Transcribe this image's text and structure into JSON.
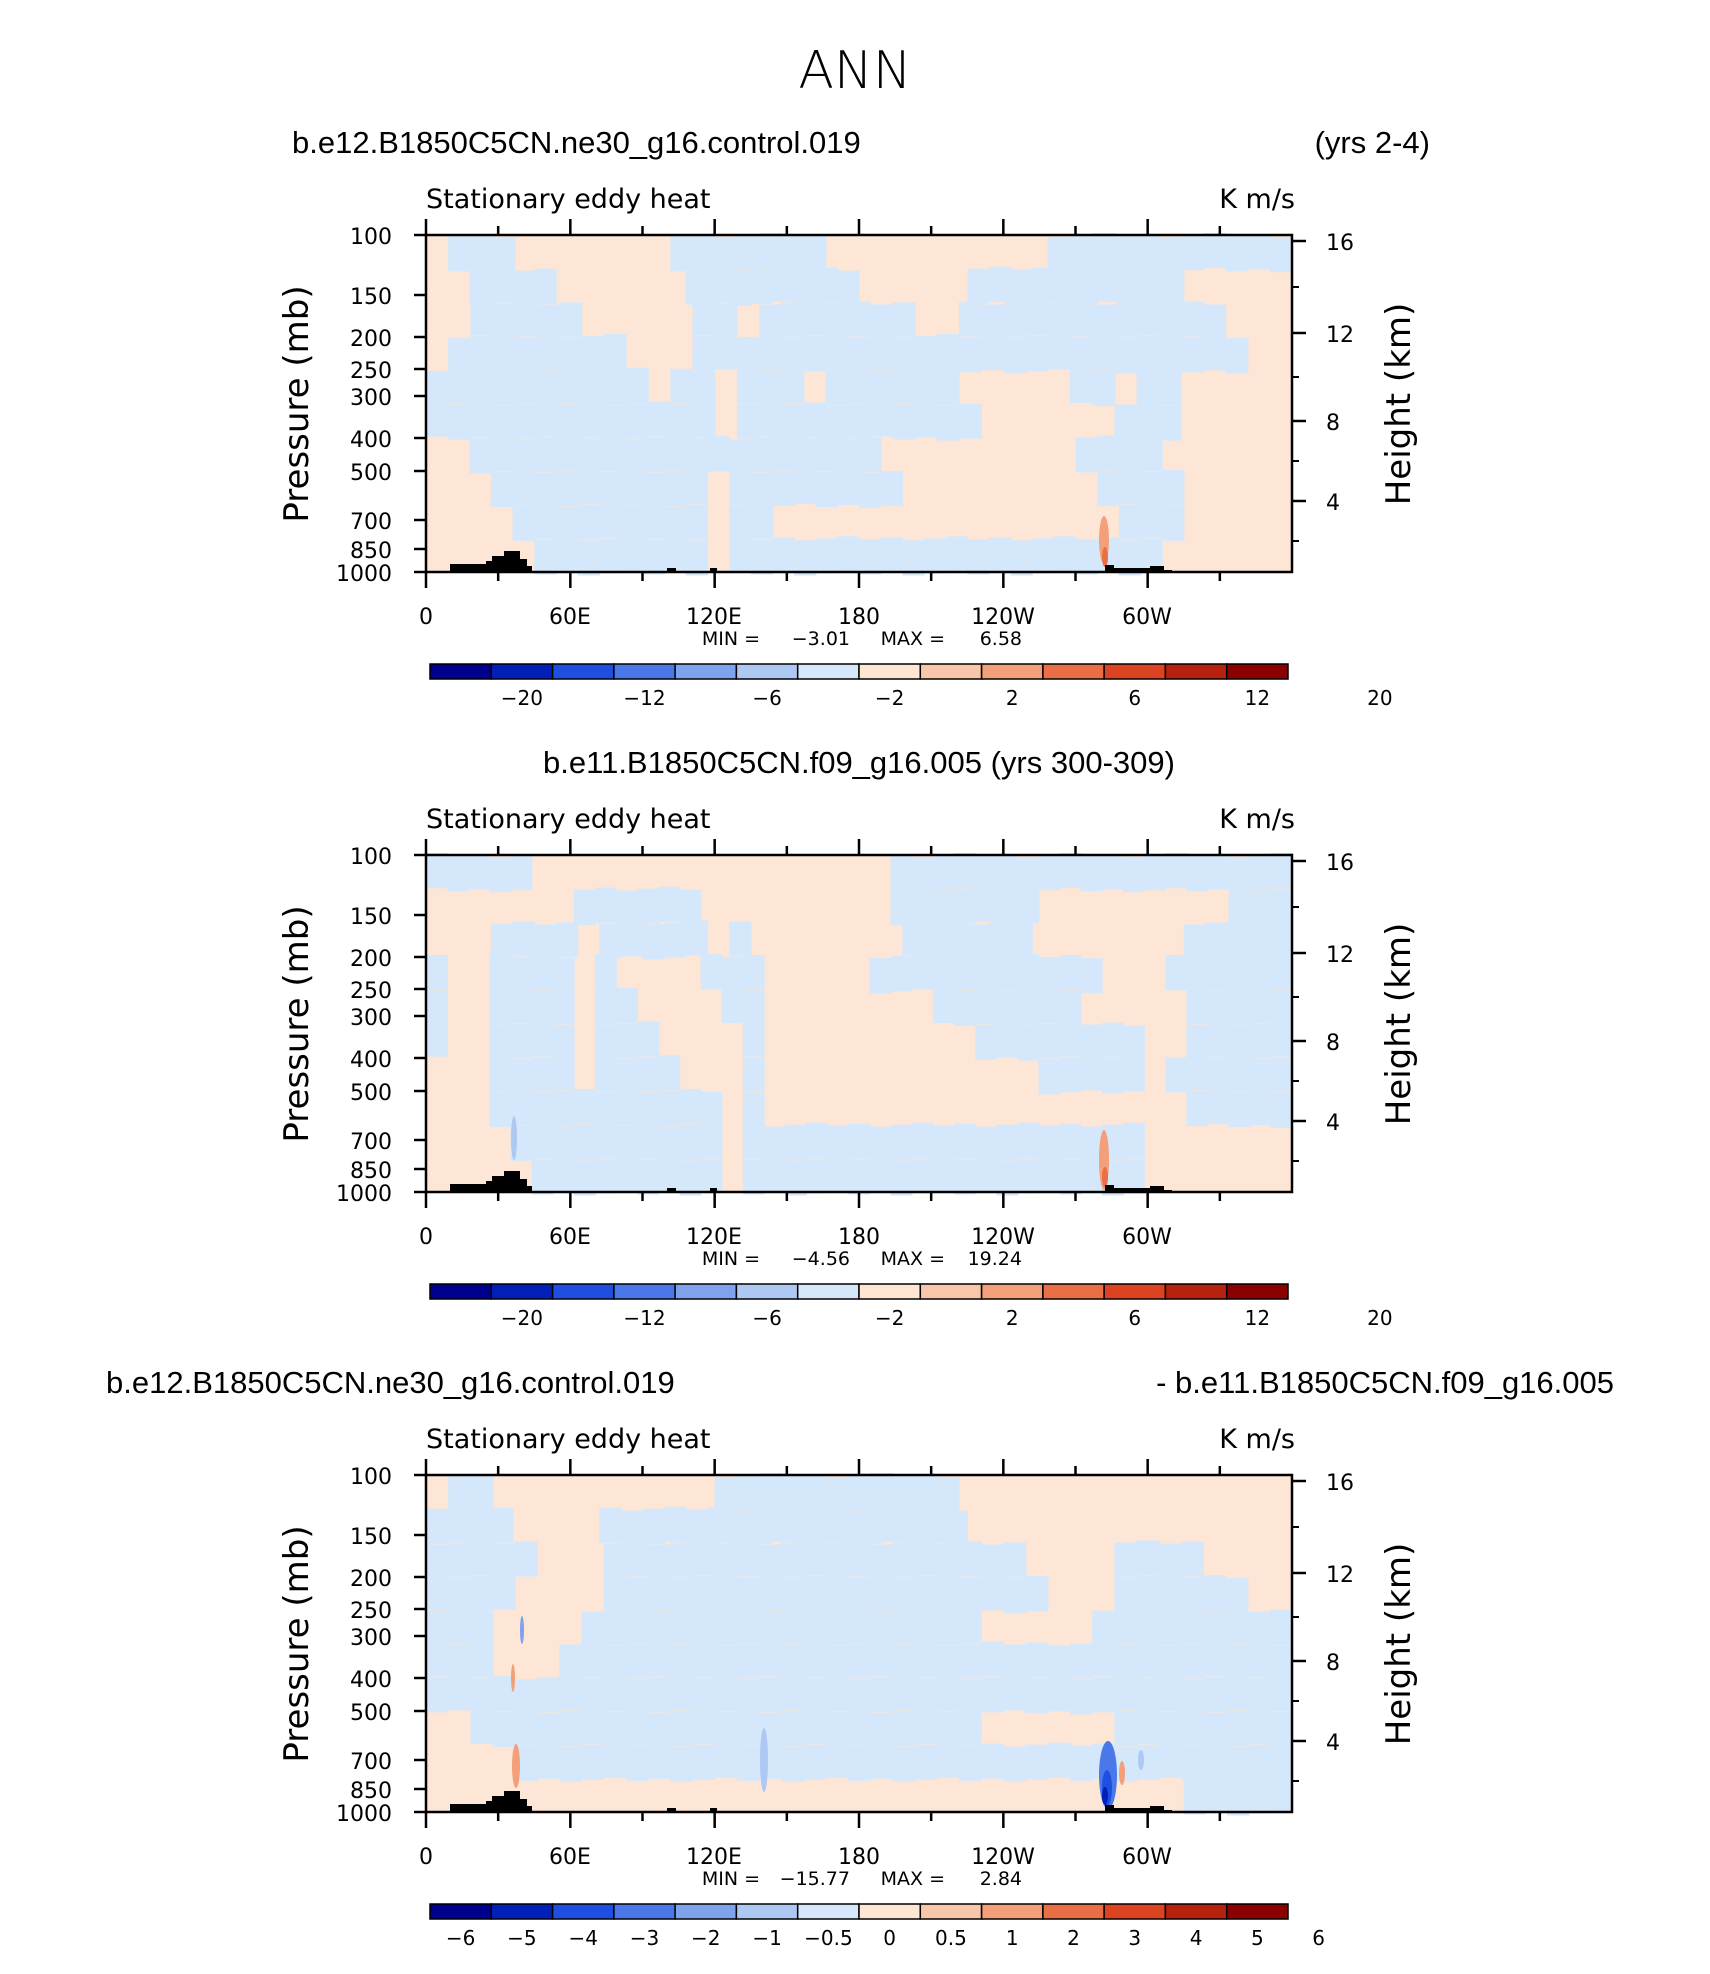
{
  "chart_data": [
    {
      "type": "heatmap",
      "figure_title": "ANN",
      "title_left": "b.e12.B1850C5CN.ne30_g16.control.019",
      "title_right": "(yrs 2-4)",
      "title_center": "",
      "subtitle": "Stationary eddy heat",
      "units": "K m/s",
      "ylabel": "Pressure (mb)",
      "ylabel_right": "Height (km)",
      "xticks": [
        "0",
        "60E",
        "120E",
        "180",
        "120W",
        "60W"
      ],
      "yticks": [
        "100",
        "150",
        "200",
        "250",
        "300",
        "400",
        "500",
        "700",
        "850",
        "1000"
      ],
      "yticks_right": [
        "16",
        "12",
        "8",
        "4"
      ],
      "min_label": "MIN =",
      "min_value": "−3.01",
      "max_label": "MAX =",
      "max_value": "6.58",
      "colorbar_labels": [
        "−20",
        "−12",
        "−6",
        "−2",
        "2",
        "6",
        "12",
        "20"
      ],
      "colorbar_colors": [
        "#00008f",
        "#0020b8",
        "#1f4fe0",
        "#4a78e8",
        "#7ea2ec",
        "#adc8f3",
        "#d5e8fb",
        "#ffe6d3",
        "#f8c6aa",
        "#f3a07a",
        "#ea6e46",
        "#dc4321",
        "#b7220f",
        "#8b0000"
      ],
      "range": [
        -3.01,
        6.58
      ],
      "pattern": [
        "pbbbpppppppbbbbbbbppppppppppbbbbbbbbbbb",
        "ppbbbbppppppbbbbbbbbpppppbbbbbbbbbbppppp",
        "ppbbbbbpppppbbpbbbbbbbppbbbbbbbbbbbbppp",
        "pbbbbbbbbpppbbbbbbbbbbbbbbbbbbbbbbbbbpp",
        "bbbbbbbbbbpbbpbbbpbbbbbbpppppbbpbbppppp",
        "bbbbbbbbbbbbbpbbbbbbbbbbbppppppbbbppppp",
        "ppbbbbbbbbbbbbbbbbbbbpppppppppbbbbpppppp",
        "pppbbbbbbbbbbpbbbbbbbbpppppppppbbbbppppp",
        "ppppbbbbbbbbbpbbppppppppppppppppbbbppppp",
        "pppppbbbbbbbbpbbbbbbbbbbbbbbbbbbbbpppppp"
      ]
    },
    {
      "type": "heatmap",
      "title_left": "",
      "title_right": "",
      "title_center": "b.e11.B1850C5CN.f09_g16.005 (yrs 300-309)",
      "subtitle": "Stationary eddy heat",
      "units": "K m/s",
      "ylabel": "Pressure (mb)",
      "ylabel_right": "Height (km)",
      "xticks": [
        "0",
        "60E",
        "120E",
        "180",
        "120W",
        "60W"
      ],
      "yticks": [
        "100",
        "150",
        "200",
        "250",
        "300",
        "400",
        "500",
        "700",
        "850",
        "1000"
      ],
      "yticks_right": [
        "16",
        "12",
        "8",
        "4"
      ],
      "min_label": "MIN =",
      "min_value": "−4.56",
      "max_label": "MAX =",
      "max_value": "19.24",
      "colorbar_labels": [
        "−20",
        "−12",
        "−6",
        "−2",
        "2",
        "6",
        "12",
        "20"
      ],
      "colorbar_colors": [
        "#00008f",
        "#0020b8",
        "#1f4fe0",
        "#4a78e8",
        "#7ea2ec",
        "#adc8f3",
        "#d5e8fb",
        "#ffe6d3",
        "#f8c6aa",
        "#f3a07a",
        "#ea6e46",
        "#dc4321",
        "#b7220f",
        "#8b0000"
      ],
      "range": [
        -4.56,
        19.24
      ],
      "pattern": [
        "bbbbbpppppppppppppppppbbbbbbbbbbbbbbbbbbb",
        "pppppppbbbbbbpppppppppbbbbbbbpppppppppbbb",
        "pppbbbbpbbbbbpbpppppppbbbbbbpppppppbbbbb",
        "bppbbbbpbppppbbbpppppbbbbbbbbbbbpppbbbbbb",
        "bppbbbbpbbppppbbppppppppbbbbbbbpppppbbbbb",
        "bppbbbbpbbbppppbppppppppppbbbbbbbbppbbbbb",
        "pppbbbbpbbbbpppbpppppppppppppbbbbbpbbbbbb",
        "pppbbbbbbbbbbbpbppppppppppppppppppppbbbbb",
        "ppppbbbbbbbbbbpbbbbbbbbbbbbbbbbbbbppppppp",
        "pppppbbbbbbbbbpbbbbbbbbbbbbbbbbbbbppppppp"
      ]
    },
    {
      "type": "heatmap",
      "title_left": "b.e12.B1850C5CN.ne30_g16.control.019",
      "title_right": "- b.e11.B1850C5CN.f09_g16.005",
      "title_center": "",
      "subtitle": "Stationary eddy heat",
      "units": "K m/s",
      "ylabel": "Pressure (mb)",
      "ylabel_right": "Height (km)",
      "xticks": [
        "0",
        "60E",
        "120E",
        "180",
        "120W",
        "60W"
      ],
      "yticks": [
        "100",
        "150",
        "200",
        "250",
        "300",
        "400",
        "500",
        "700",
        "850",
        "1000"
      ],
      "yticks_right": [
        "16",
        "12",
        "8",
        "4"
      ],
      "min_label": "MIN =",
      "min_value": "−15.77",
      "max_label": "MAX =",
      "max_value": "2.84",
      "colorbar_labels": [
        "−6",
        "−5",
        "−4",
        "−3",
        "−2",
        "−1",
        "−0.5",
        "0",
        "0.5",
        "1",
        "2",
        "3",
        "4",
        "5",
        "6"
      ],
      "colorbar_colors": [
        "#00008f",
        "#0020b8",
        "#1f4fe0",
        "#4a78e8",
        "#7ea2ec",
        "#adc8f3",
        "#d5e8fb",
        "#ffe6d3",
        "#f8c6aa",
        "#f3a07a",
        "#ea6e46",
        "#dc4321",
        "#b7220f",
        "#8b0000"
      ],
      "range": [
        -15.77,
        2.84
      ],
      "pattern": [
        "pbbppppppppppbbbbbbbbbbbppppppppppppppp",
        "bbbbppppbbbbbbbbbbbbbbbbbppppppppppppppp",
        "bbbbbpppbbbbbbbbbbbbbbbbbbbppppbbbbpppp",
        "bbbbppppbbbbbbbbbbbbbbbbbbbbpppbbbbbbpp",
        "bbbppppbbbbbbbbbbbbbbbbbbpppppbbbbbbbbb",
        "bbbpppbbbbbbbbbbbbbbbbbbbbbbbbbbbbbbbbb",
        "bbbbbbbbbbbbbbbbbbbbbbbbbbbbbbbbbbbbbbb",
        "ppbbbbbbbbbbbbbbbbbbbbbbbppppppbbbbbbbb",
        "ppppbbbbbbbbbbbbbbbbbbbbbbbbbbbbbbbbbbb",
        "pppppppppppppppppppppppppppppppppppbbbbb"
      ]
    }
  ]
}
